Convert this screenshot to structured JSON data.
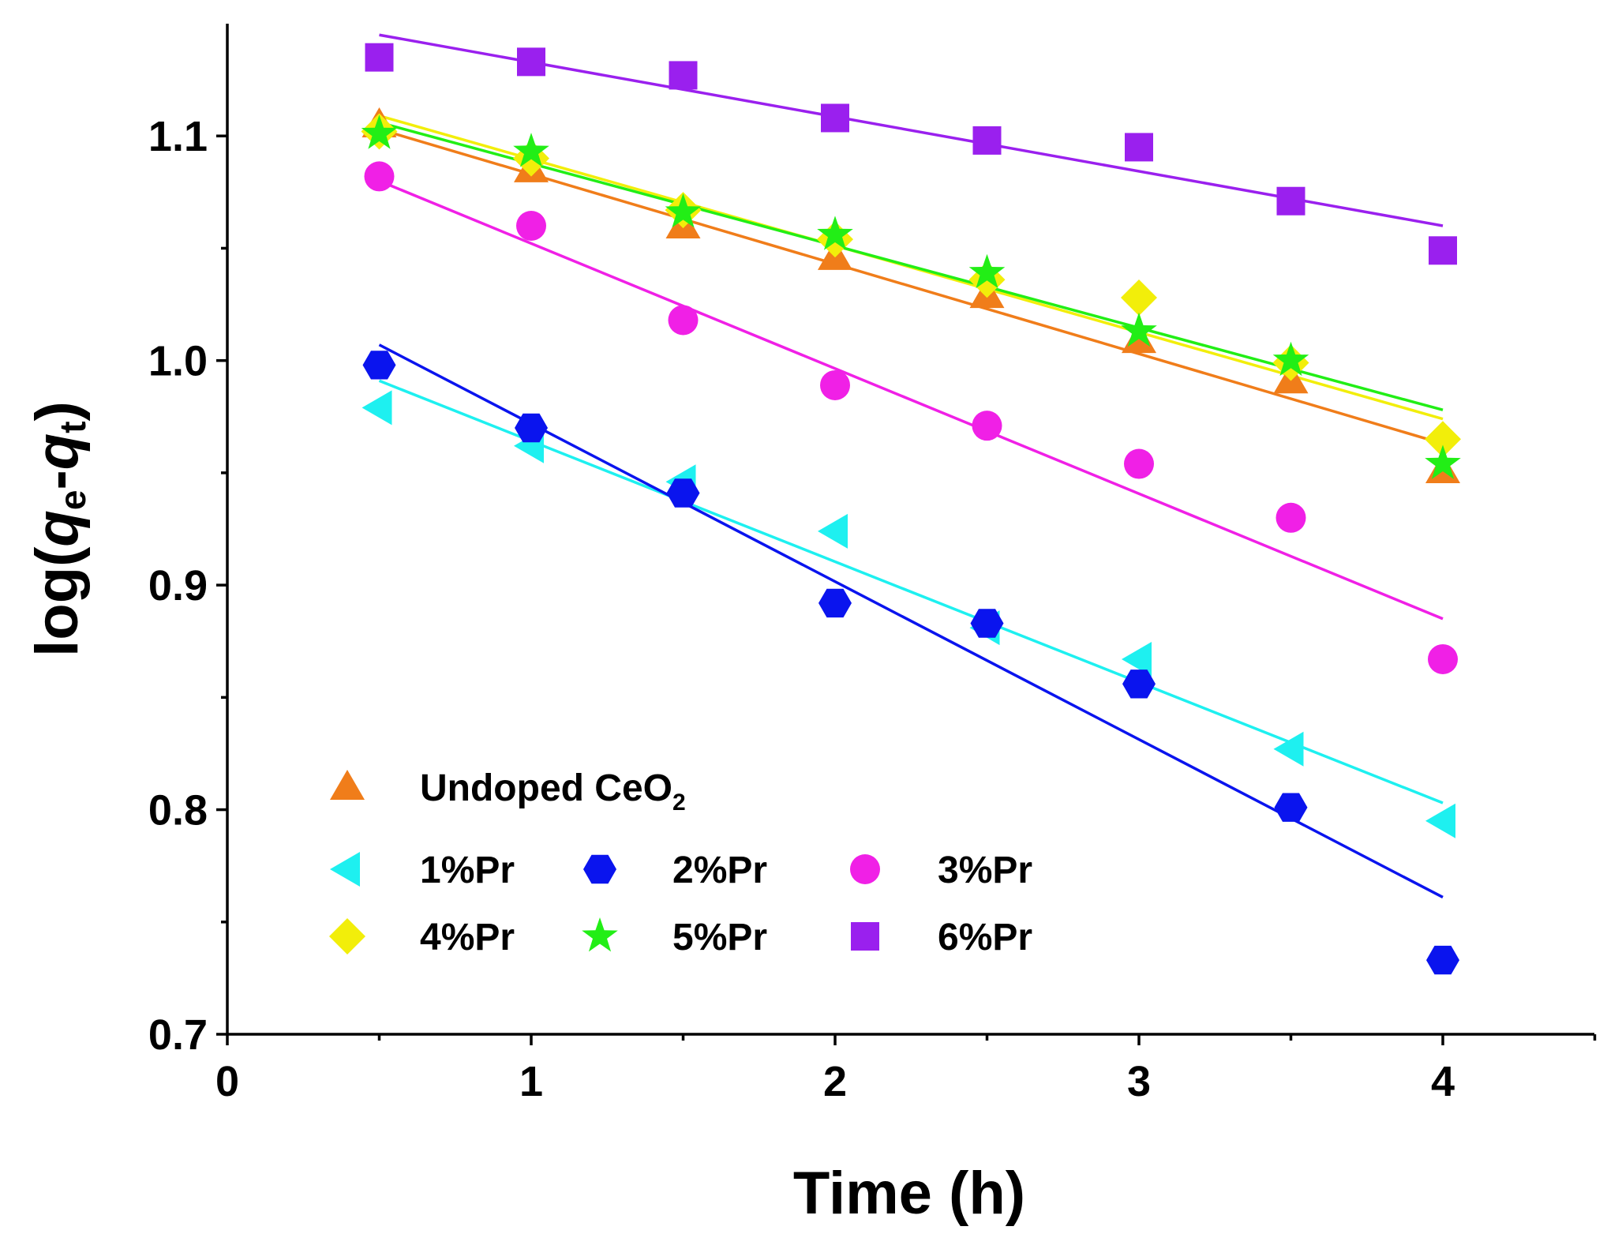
{
  "chart_data": {
    "type": "scatter",
    "title": "",
    "xlabel": "Time (h)",
    "ylabel": "log(qe-qt)",
    "ylabel_parts": {
      "pre": "log(",
      "q1": "q",
      "sub1": "e",
      "dash": "-",
      "q2": "q",
      "sub2": "t",
      "post": ")"
    },
    "xlim": [
      0,
      4.5
    ],
    "ylim": [
      0.7,
      1.15
    ],
    "xticks": [
      0,
      1,
      2,
      3,
      4
    ],
    "xtick_labels": [
      "0",
      "1",
      "2",
      "3",
      "4"
    ],
    "yticks": [
      0.7,
      0.8,
      0.9,
      1.0,
      1.1
    ],
    "ytick_labels": [
      "0.7",
      "0.8",
      "0.9",
      "1.0",
      "1.1"
    ],
    "grid": false,
    "legend_position": "bottom-left",
    "series": [
      {
        "name": "Undoped CeO2",
        "label_main": "Undoped CeO",
        "label_sub": "2",
        "marker": "triangle-up",
        "color": "#f07d1a",
        "x": [
          0.5,
          1.0,
          1.5,
          2.0,
          2.5,
          3.0,
          3.5,
          4.0
        ],
        "y": [
          1.105,
          1.085,
          1.06,
          1.046,
          1.029,
          1.009,
          0.991,
          0.951
        ],
        "fit": {
          "x": [
            0.5,
            4.0
          ],
          "y": [
            1.103,
            0.963
          ]
        }
      },
      {
        "name": "1%Pr",
        "label_main": "1%Pr",
        "label_sub": "",
        "marker": "triangle-left",
        "color": "#1ef0f0",
        "x": [
          0.5,
          1.0,
          1.5,
          2.0,
          2.5,
          3.0,
          3.5,
          4.0
        ],
        "y": [
          0.979,
          0.962,
          0.946,
          0.924,
          0.881,
          0.867,
          0.827,
          0.795
        ],
        "fit": {
          "x": [
            0.5,
            4.0
          ],
          "y": [
            0.991,
            0.803
          ]
        }
      },
      {
        "name": "2%Pr",
        "label_main": "2%Pr",
        "label_sub": "",
        "marker": "hexagon",
        "color": "#0a14ee",
        "x": [
          0.5,
          1.0,
          1.5,
          2.0,
          2.5,
          3.0,
          3.5,
          4.0
        ],
        "y": [
          0.998,
          0.97,
          0.941,
          0.892,
          0.883,
          0.856,
          0.801,
          0.733
        ],
        "fit": {
          "x": [
            0.5,
            4.0
          ],
          "y": [
            1.007,
            0.761
          ]
        }
      },
      {
        "name": "3%Pr",
        "label_main": "3%Pr",
        "label_sub": "",
        "marker": "circle",
        "color": "#f020e6",
        "x": [
          0.5,
          1.0,
          1.5,
          2.0,
          2.5,
          3.0,
          3.5,
          4.0
        ],
        "y": [
          1.082,
          1.06,
          1.018,
          0.989,
          0.971,
          0.954,
          0.93,
          0.867
        ],
        "fit": {
          "x": [
            0.5,
            4.0
          ],
          "y": [
            1.08,
            0.885
          ]
        }
      },
      {
        "name": "4%Pr",
        "label_main": "4%Pr",
        "label_sub": "",
        "marker": "diamond",
        "color": "#f2ee0a",
        "x": [
          0.5,
          1.0,
          1.5,
          2.0,
          2.5,
          3.0,
          3.5,
          4.0
        ],
        "y": [
          1.102,
          1.09,
          1.067,
          1.054,
          1.036,
          1.028,
          0.999,
          0.965
        ],
        "fit": {
          "x": [
            0.5,
            4.0
          ],
          "y": [
            1.109,
            0.974
          ]
        }
      },
      {
        "name": "5%Pr",
        "label_main": "5%Pr",
        "label_sub": "",
        "marker": "star",
        "color": "#22ee16",
        "x": [
          0.5,
          1.0,
          1.5,
          2.0,
          2.5,
          3.0,
          3.5,
          4.0
        ],
        "y": [
          1.101,
          1.093,
          1.066,
          1.056,
          1.039,
          1.013,
          1.0,
          0.954
        ],
        "fit": {
          "x": [
            0.5,
            4.0
          ],
          "y": [
            1.106,
            0.978
          ]
        }
      },
      {
        "name": "6%Pr",
        "label_main": "6%Pr",
        "label_sub": "",
        "marker": "square",
        "color": "#9a20ee",
        "x": [
          0.5,
          1.0,
          1.5,
          2.0,
          2.5,
          3.0,
          3.5,
          4.0
        ],
        "y": [
          1.135,
          1.133,
          1.127,
          1.108,
          1.098,
          1.095,
          1.071,
          1.049
        ],
        "fit": {
          "x": [
            0.5,
            4.0
          ],
          "y": [
            1.145,
            1.06
          ]
        }
      }
    ]
  }
}
